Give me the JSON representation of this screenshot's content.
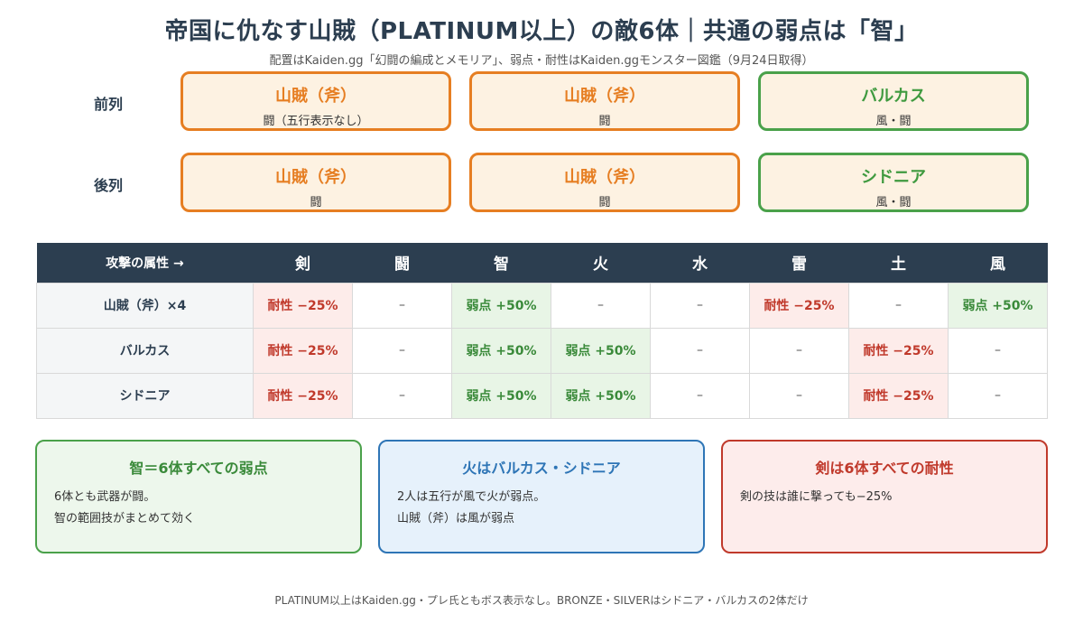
{
  "title": "帝国に仇なす山賊（PLATINUM以上）の敵6体｜共通の弱点は「智」",
  "subtitle": "配置はKaiden.gg「幻闘の編成とメモリア」、弱点・耐性はKaiden.ggモンスター図鑑（9月24日取得）",
  "formation": {
    "front_label": "前列",
    "back_label": "後列",
    "front": [
      {
        "name": "山賊（斧）",
        "attr": "闘（五行表示なし）"
      },
      {
        "name": "山賊（斧）",
        "attr": "闘"
      },
      {
        "name": "バルカス",
        "attr": "風・闘"
      }
    ],
    "back": [
      {
        "name": "山賊（斧）",
        "attr": "闘"
      },
      {
        "name": "山賊（斧）",
        "attr": "闘"
      },
      {
        "name": "シドニア",
        "attr": "風・闘"
      }
    ]
  },
  "table": {
    "corner": "攻撃の属性 →",
    "columns": [
      "剣",
      "闘",
      "智",
      "火",
      "水",
      "雷",
      "土",
      "風"
    ],
    "rows": [
      {
        "name": "山賊（斧）×4",
        "cells": [
          "耐性 −25%",
          "–",
          "弱点 +50%",
          "–",
          "–",
          "耐性 −25%",
          "–",
          "弱点 +50%"
        ]
      },
      {
        "name": "バルカス",
        "cells": [
          "耐性 −25%",
          "–",
          "弱点 +50%",
          "弱点 +50%",
          "–",
          "–",
          "耐性 −25%",
          "–"
        ]
      },
      {
        "name": "シドニア",
        "cells": [
          "耐性 −25%",
          "–",
          "弱点 +50%",
          "弱点 +50%",
          "–",
          "–",
          "耐性 −25%",
          "–"
        ]
      }
    ]
  },
  "notes": [
    {
      "title": "智＝6体すべての弱点",
      "lines": [
        "6体とも武器が闘。",
        "智の範囲技がまとめて効く"
      ]
    },
    {
      "title": "火はバルカス・シドニア",
      "lines": [
        "2人は五行が風で火が弱点。",
        "山賊（斧）は風が弱点"
      ]
    },
    {
      "title": "剣は6体すべての耐性",
      "lines": [
        "剣の技は誰に撃っても−25%"
      ]
    }
  ],
  "footer": "PLATINUM以上はKaiden.gg・プレ氏ともボス表示なし。BRONZE・SILVERはシドニア・バルカスの2体だけ",
  "colors": {
    "header_bg": "#2c3e50",
    "weak_bg": "#e8f5e6",
    "weak_text": "#3a8a3a",
    "resist_bg": "#fdecea",
    "resist_text": "#c0392b",
    "orange": "#e67e22",
    "green": "#4aa14a",
    "blue": "#2e75b6"
  }
}
